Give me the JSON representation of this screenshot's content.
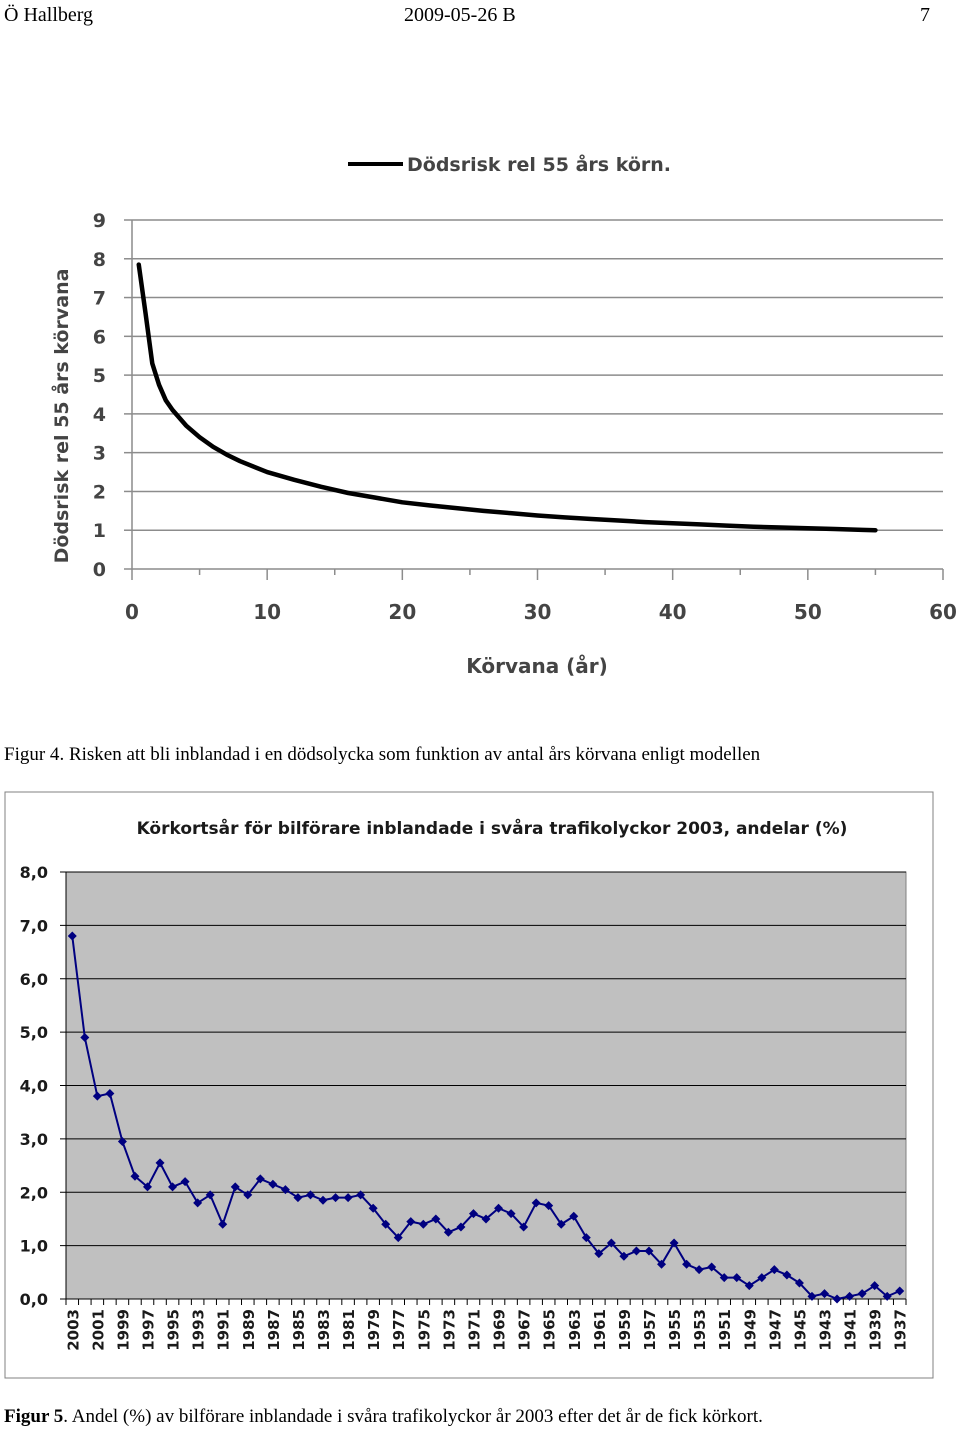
{
  "header": {
    "author": "Ö Hallberg",
    "date": "2009-05-26 B",
    "page": "7"
  },
  "captions": {
    "fig4_label": "Figur 4",
    "fig4_text": ". Risken att bli inblandad i en dödsolycka som funktion av antal års körvana enligt modellen",
    "fig5_label": "Figur 5",
    "fig5_text": ". Andel (%) av bilförare inblandade i svåra trafikolyckor år 2003 efter det år de fick körkort."
  },
  "chart_data": [
    {
      "type": "line",
      "title": "",
      "xlabel": "Körvana (år)",
      "ylabel": "Dödsrisk rel 55 års körvana",
      "legend": "top",
      "xlim": [
        0,
        60
      ],
      "ylim": [
        0,
        9
      ],
      "x_ticks": [
        "0",
        "10",
        "20",
        "30",
        "40",
        "50",
        "60"
      ],
      "y_ticks": [
        "0",
        "1",
        "2",
        "3",
        "4",
        "5",
        "6",
        "7",
        "8",
        "9"
      ],
      "grid": true,
      "series": [
        {
          "name": "Dödsrisk rel 55 års körn.",
          "color": "#000000",
          "x": [
            0.5,
            1,
            1.5,
            2,
            2.5,
            3,
            4,
            5,
            6,
            7,
            8,
            10,
            12,
            14,
            16,
            18,
            20,
            22,
            24,
            26,
            28,
            30,
            32,
            34,
            36,
            38,
            40,
            42,
            44,
            46,
            48,
            50,
            52,
            54,
            55
          ],
          "y": [
            7.85,
            6.6,
            5.3,
            4.75,
            4.35,
            4.1,
            3.7,
            3.4,
            3.15,
            2.95,
            2.78,
            2.5,
            2.3,
            2.12,
            1.96,
            1.84,
            1.72,
            1.64,
            1.57,
            1.5,
            1.44,
            1.38,
            1.33,
            1.29,
            1.25,
            1.21,
            1.18,
            1.15,
            1.12,
            1.09,
            1.07,
            1.05,
            1.03,
            1.01,
            1.0
          ]
        }
      ]
    },
    {
      "type": "line",
      "title": "Körkortsår för bilförare inblandade i svåra trafikolyckor 2003, andelar (%)",
      "xlabel": "",
      "ylabel": "",
      "ylim": [
        0,
        8
      ],
      "y_ticks": [
        "0,0",
        "1,0",
        "2,0",
        "3,0",
        "4,0",
        "5,0",
        "6,0",
        "7,0",
        "8,0"
      ],
      "x_tick_labels": [
        "2003",
        "2001",
        "1999",
        "1997",
        "1995",
        "1993",
        "1991",
        "1989",
        "1987",
        "1985",
        "1983",
        "1981",
        "1979",
        "1977",
        "1975",
        "1973",
        "1971",
        "1969",
        "1967",
        "1965",
        "1963",
        "1961",
        "1959",
        "1957",
        "1955",
        "1953",
        "1951",
        "1949",
        "1947",
        "1945",
        "1943",
        "1941",
        "1939",
        "1937"
      ],
      "grid": true,
      "background": "#c0c0c0",
      "marker": "diamond",
      "series": [
        {
          "color": "#000080",
          "categories": [
            2003,
            2002,
            2001,
            2000,
            1999,
            1998,
            1997,
            1996,
            1995,
            1994,
            1993,
            1992,
            1991,
            1990,
            1989,
            1988,
            1987,
            1986,
            1985,
            1984,
            1983,
            1982,
            1981,
            1980,
            1979,
            1978,
            1977,
            1976,
            1975,
            1974,
            1973,
            1972,
            1971,
            1970,
            1969,
            1968,
            1967,
            1966,
            1965,
            1964,
            1963,
            1962,
            1961,
            1960,
            1959,
            1958,
            1957,
            1956,
            1955,
            1954,
            1953,
            1952,
            1951,
            1950,
            1949,
            1948,
            1947,
            1946,
            1945,
            1944,
            1943,
            1942,
            1941,
            1940,
            1939,
            1938,
            1937
          ],
          "values": [
            6.8,
            4.9,
            3.8,
            3.85,
            2.95,
            2.3,
            2.1,
            2.55,
            2.1,
            2.2,
            1.8,
            1.95,
            1.4,
            2.1,
            1.95,
            2.25,
            2.15,
            2.05,
            1.9,
            1.95,
            1.85,
            1.9,
            1.9,
            1.95,
            1.7,
            1.4,
            1.15,
            1.45,
            1.4,
            1.5,
            1.25,
            1.35,
            1.6,
            1.5,
            1.7,
            1.6,
            1.35,
            1.8,
            1.75,
            1.4,
            1.55,
            1.15,
            0.85,
            1.05,
            0.8,
            0.9,
            0.9,
            0.65,
            1.05,
            0.65,
            0.55,
            0.6,
            0.4,
            0.4,
            0.25,
            0.4,
            0.55,
            0.45,
            0.3,
            0.05,
            0.1,
            0.0,
            0.05,
            0.1,
            0.25,
            0.05,
            0.15
          ]
        }
      ]
    }
  ]
}
